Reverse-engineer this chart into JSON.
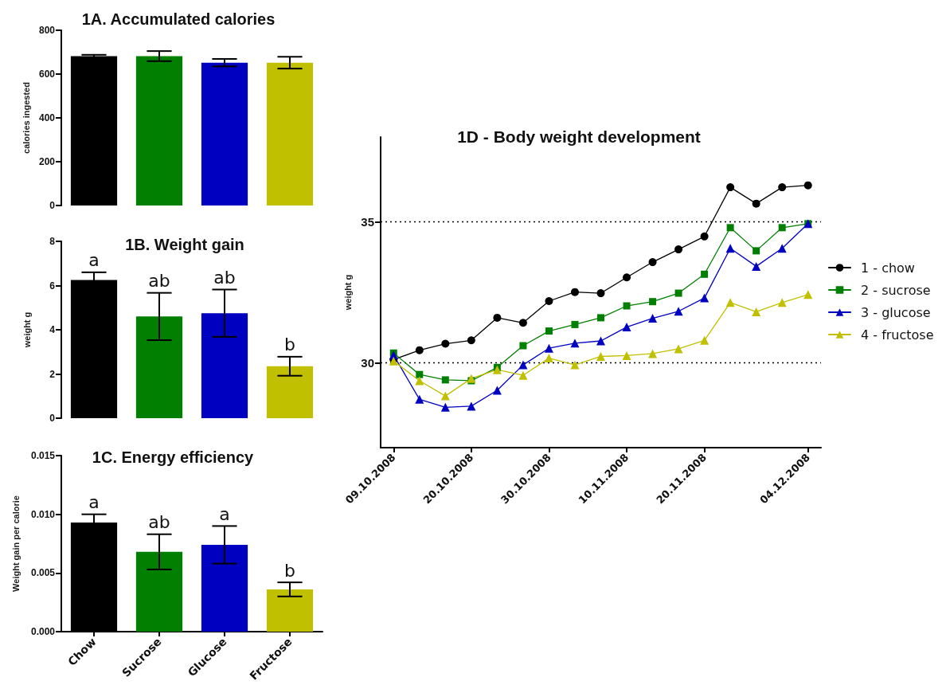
{
  "chart_data": [
    {
      "type": "bar",
      "title": "1A. Accumulated calories",
      "ylabel": "calories ingested",
      "categories": [
        null,
        null,
        null,
        null
      ],
      "values": [
        682,
        682,
        652,
        652
      ],
      "colors": [
        "#000000",
        "#007f00",
        "#0000c0",
        "#c0c000"
      ],
      "errors": [
        6,
        23,
        17,
        27
      ],
      "ylim": [
        0,
        800
      ],
      "yticks": [
        0,
        200,
        400,
        600,
        800
      ],
      "tick_labels": "y"
    },
    {
      "type": "bar",
      "title": "1B. Weight gain",
      "ylabel": "weight g",
      "categories": [
        null,
        null,
        null,
        null
      ],
      "values": [
        6.25,
        4.6,
        4.75,
        2.35
      ],
      "colors": [
        "#000000",
        "#007f00",
        "#0000c0",
        "#c0c000"
      ],
      "errors": [
        0.35,
        1.07,
        1.07,
        0.43
      ],
      "ylim": [
        0,
        8
      ],
      "yticks": [
        0,
        2,
        4,
        6,
        8
      ],
      "tick_labels": "y",
      "annotations": [
        "a",
        "ab",
        "ab",
        "b"
      ]
    },
    {
      "type": "bar",
      "title": "1C. Energy efficiency",
      "ylabel": "Weight gain per calorie",
      "categories": [
        "Chow",
        "Sucrose",
        "Glucose",
        "Fructose"
      ],
      "values": [
        0.0093,
        0.0068,
        0.0074,
        0.0036
      ],
      "colors": [
        "#000000",
        "#007f00",
        "#0000c0",
        "#c0c000"
      ],
      "errors": [
        0.0007,
        0.0015,
        0.0016,
        0.0006
      ],
      "ylim": [
        0,
        0.015
      ],
      "yticks": [
        {
          "value": 0,
          "label": "0.000"
        },
        0.005,
        {
          "value": 0.01,
          "label": "0.010"
        },
        0.015
      ],
      "annotations": [
        "a",
        "ab",
        "a",
        "b"
      ]
    },
    {
      "type": "line",
      "title": "1D - Body weight development",
      "ylabel": "weight g",
      "categories": [
        "09.10.2008",
        null,
        null,
        "20.10.2008",
        null,
        null,
        "30.10.2008",
        null,
        null,
        "10.11.2008",
        null,
        null,
        "20.11.2008",
        null,
        null,
        null,
        "04.12.2008"
      ],
      "series": [
        {
          "name": "1 - chow",
          "color": "#000000",
          "marker": "circle",
          "values": [
            30.12,
            30.45,
            30.68,
            30.8,
            31.6,
            31.42,
            32.19,
            32.51,
            32.47,
            33.03,
            33.57,
            34.02,
            34.48,
            36.22,
            35.64,
            36.22,
            36.29
          ]
        },
        {
          "name": "2 - sucrose",
          "color": "#007f00",
          "marker": "square",
          "values": [
            30.35,
            29.59,
            29.4,
            29.37,
            29.84,
            30.61,
            31.13,
            31.36,
            31.6,
            32.02,
            32.17,
            32.47,
            33.14,
            34.79,
            33.97,
            34.79,
            34.93
          ]
        },
        {
          "name": "3 - glucose",
          "color": "#0000c0",
          "marker": "triangle",
          "values": [
            30.28,
            28.71,
            28.43,
            28.47,
            29.03,
            29.93,
            30.52,
            30.7,
            30.78,
            31.27,
            31.58,
            31.83,
            32.3,
            34.06,
            33.42,
            34.06,
            34.93
          ]
        },
        {
          "name": "4 - fructose",
          "color": "#c0c000",
          "marker": "triangle",
          "values": [
            30.07,
            29.37,
            28.83,
            29.45,
            29.76,
            29.56,
            30.17,
            29.93,
            30.23,
            30.26,
            30.33,
            30.5,
            30.8,
            32.14,
            31.81,
            32.14,
            32.42
          ]
        }
      ],
      "ylim": [
        27,
        38
      ],
      "yticks": [
        30,
        35
      ],
      "grid": "y",
      "legend": "right"
    }
  ]
}
